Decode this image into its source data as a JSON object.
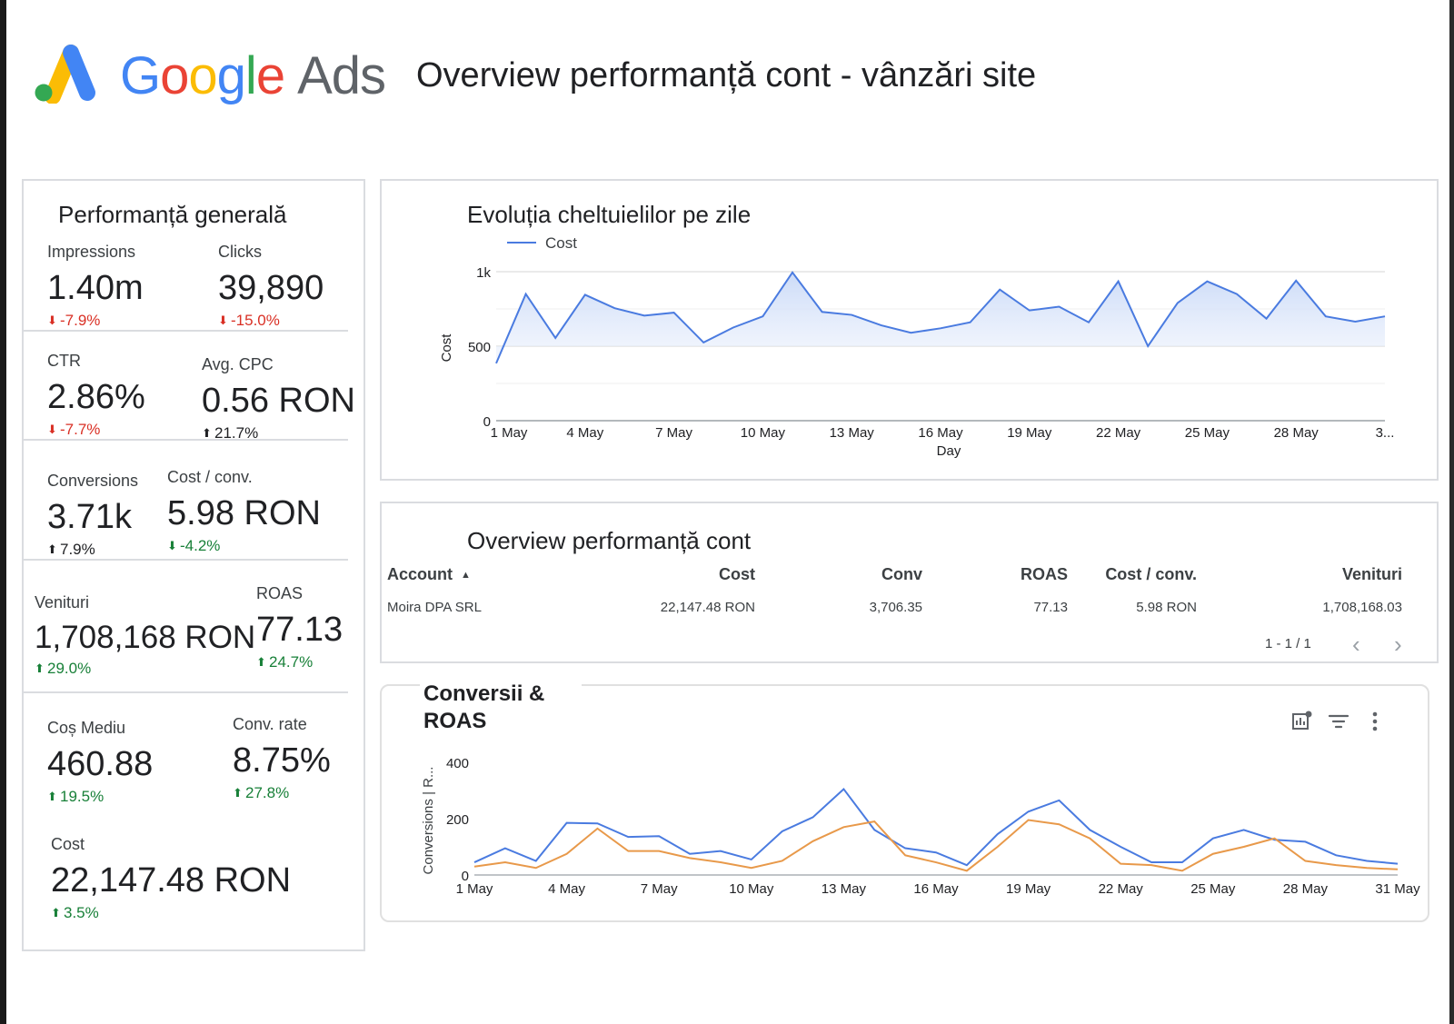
{
  "header": {
    "brand_google": "Google",
    "brand_ads": "Ads",
    "dashboard_title": "Overview performanță cont - vânzări site"
  },
  "kpi_panel": {
    "title": "Performanță generală",
    "items": [
      {
        "label": "Impressions",
        "value": "1.40m",
        "delta": "-7.9%",
        "direction": "down",
        "tone": "red"
      },
      {
        "label": "Clicks",
        "value": "39,890",
        "delta": "-15.0%",
        "direction": "down",
        "tone": "red"
      },
      {
        "label": "CTR",
        "value": "2.86%",
        "delta": "-7.7%",
        "direction": "down",
        "tone": "red"
      },
      {
        "label": "Avg. CPC",
        "value": "0.56 RON",
        "delta": "21.7%",
        "direction": "up",
        "tone": "black"
      },
      {
        "label": "Conversions",
        "value": "3.71k",
        "delta": "7.9%",
        "direction": "up",
        "tone": "black"
      },
      {
        "label": "Cost / conv.",
        "value": "5.98 RON",
        "delta": "-4.2%",
        "direction": "down",
        "tone": "green"
      },
      {
        "label": "Venituri",
        "value": "1,708,168 RON",
        "delta": "29.0%",
        "direction": "up",
        "tone": "green"
      },
      {
        "label": "ROAS",
        "value": "77.13",
        "delta": "24.7%",
        "direction": "up",
        "tone": "green"
      },
      {
        "label": "Coș Mediu",
        "value": "460.88",
        "delta": "19.5%",
        "direction": "up",
        "tone": "green"
      },
      {
        "label": "Conv. rate",
        "value": "8.75%",
        "delta": "27.8%",
        "direction": "up",
        "tone": "green"
      },
      {
        "label": "Cost",
        "value": "22,147.48 RON",
        "delta": "3.5%",
        "direction": "up",
        "tone": "green"
      }
    ]
  },
  "cost_chart": {
    "title": "Evoluția cheltuielilor pe zile",
    "chart_data": {
      "type": "area",
      "title": "Evoluția cheltuielilor pe zile",
      "xlabel": "Day",
      "ylabel": "Cost",
      "ylim": [
        0,
        1000
      ],
      "y_ticks": [
        "0",
        "500",
        "1k"
      ],
      "x_ticks": [
        "1 May",
        "4 May",
        "7 May",
        "10 May",
        "13 May",
        "16 May",
        "19 May",
        "22 May",
        "25 May",
        "28 May",
        "3..."
      ],
      "legend": "top-left",
      "grid": true,
      "series": [
        {
          "name": "Cost",
          "color": "#4a7be0",
          "x": [
            "1 May",
            "2 May",
            "3 May",
            "4 May",
            "5 May",
            "6 May",
            "7 May",
            "8 May",
            "9 May",
            "10 May",
            "11 May",
            "12 May",
            "13 May",
            "14 May",
            "15 May",
            "16 May",
            "17 May",
            "18 May",
            "19 May",
            "20 May",
            "21 May",
            "22 May",
            "23 May",
            "24 May",
            "25 May",
            "26 May",
            "27 May",
            "28 May",
            "29 May",
            "30 May",
            "31 May"
          ],
          "values": [
            385,
            850,
            555,
            845,
            755,
            705,
            725,
            525,
            625,
            700,
            995,
            730,
            710,
            640,
            590,
            620,
            660,
            880,
            740,
            765,
            660,
            935,
            500,
            790,
            935,
            850,
            685,
            940,
            700,
            665,
            700
          ]
        }
      ]
    }
  },
  "overview_table": {
    "title": "Overview performanță cont",
    "columns": [
      "Account",
      "Cost",
      "Conv",
      "ROAS",
      "Cost / conv.",
      "Venituri"
    ],
    "sort_indicator": "▲",
    "rows": [
      [
        "Moira DPA SRL",
        "22,147.48 RON",
        "3,706.35",
        "77.13",
        "5.98 RON",
        "1,708,168.03"
      ]
    ],
    "pager_text": "1 - 1 / 1",
    "prev_icon": "chevron-left",
    "next_icon": "chevron-right"
  },
  "conv_chart": {
    "title": "Conversii & ROAS",
    "toolbar_icons": [
      "chart-settings-icon",
      "filter-icon",
      "more-vert-icon"
    ],
    "chart_data": {
      "type": "line",
      "title": "Conversii & ROAS",
      "ylabel": "Conversions | R...",
      "ylim": [
        0,
        400
      ],
      "y_ticks": [
        "0",
        "200",
        "400"
      ],
      "x_ticks": [
        "1 May",
        "4 May",
        "7 May",
        "10 May",
        "13 May",
        "16 May",
        "19 May",
        "22 May",
        "25 May",
        "28 May",
        "31 May"
      ],
      "grid": false,
      "x": [
        "1 May",
        "2 May",
        "3 May",
        "4 May",
        "5 May",
        "6 May",
        "7 May",
        "8 May",
        "9 May",
        "10 May",
        "11 May",
        "12 May",
        "13 May",
        "14 May",
        "15 May",
        "16 May",
        "17 May",
        "18 May",
        "19 May",
        "20 May",
        "21 May",
        "22 May",
        "23 May",
        "24 May",
        "25 May",
        "26 May",
        "27 May",
        "28 May",
        "29 May",
        "30 May",
        "31 May"
      ],
      "series": [
        {
          "color": "#4a7be0",
          "values": [
            45,
            95,
            50,
            185,
            183,
            135,
            138,
            75,
            85,
            55,
            155,
            205,
            305,
            160,
            95,
            80,
            35,
            145,
            225,
            265,
            160,
            100,
            45,
            45,
            130,
            160,
            125,
            118,
            70,
            50,
            40
          ]
        },
        {
          "color": "#e8994a",
          "values": [
            30,
            45,
            25,
            75,
            165,
            85,
            85,
            60,
            45,
            25,
            50,
            120,
            170,
            190,
            70,
            45,
            15,
            100,
            195,
            180,
            130,
            40,
            35,
            15,
            75,
            100,
            130,
            50,
            35,
            25,
            20
          ]
        }
      ]
    }
  }
}
